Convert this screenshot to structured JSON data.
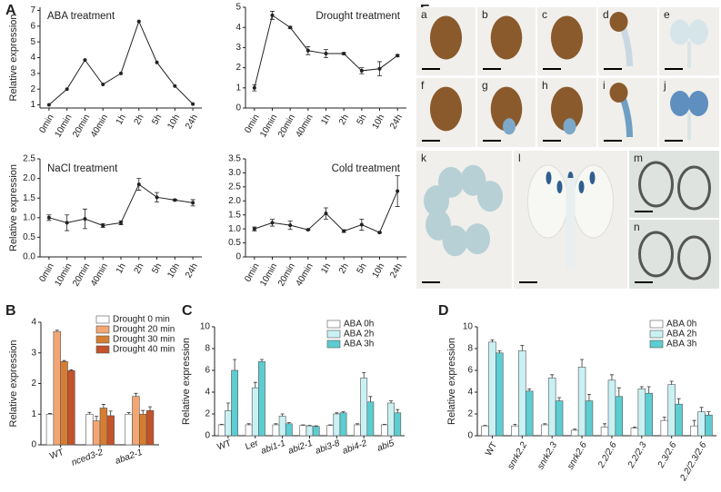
{
  "chart_data": [
    {
      "type": "line",
      "panel": "A",
      "title": "ABA treatment",
      "ylabel": "Relative expression",
      "categories": [
        "0min",
        "10min",
        "20min",
        "40min",
        "1h",
        "2h",
        "5h",
        "10h",
        "24h"
      ],
      "values": [
        1.0,
        2.0,
        3.85,
        2.3,
        3.0,
        6.3,
        3.7,
        2.2,
        1.05
      ],
      "ylim": [
        0.8,
        7.2
      ],
      "yticks": [
        1,
        2,
        3,
        4,
        5,
        6,
        7
      ],
      "color": "#222222"
    },
    {
      "type": "line",
      "title": "Drought treatment",
      "categories": [
        "0min",
        "10min",
        "20min",
        "40min",
        "1h",
        "2h",
        "5h",
        "10h",
        "24h"
      ],
      "values": [
        1.0,
        4.6,
        4.0,
        2.85,
        2.7,
        2.7,
        1.85,
        1.95,
        2.6
      ],
      "errors": [
        0.15,
        0.2,
        0.05,
        0.2,
        0.2,
        0.05,
        0.15,
        0.35,
        0.05
      ],
      "ylim": [
        0,
        5
      ],
      "yticks": [
        0,
        1,
        2,
        3,
        4,
        5
      ],
      "color": "#222222"
    },
    {
      "type": "line",
      "title": "NaCl treatment",
      "ylabel": "Relative expression",
      "categories": [
        "0min",
        "10min",
        "20min",
        "40min",
        "1h",
        "2h",
        "5h",
        "10h",
        "24h"
      ],
      "values": [
        1.0,
        0.87,
        0.97,
        0.8,
        0.87,
        1.85,
        1.52,
        1.45,
        1.38
      ],
      "errors": [
        0.07,
        0.2,
        0.25,
        0.05,
        0.05,
        0.15,
        0.12,
        0.02,
        0.08
      ],
      "ylim": [
        0,
        2.5
      ],
      "yticks": [
        {
          "value": 0,
          "label": "0.0"
        },
        0.5,
        {
          "value": 1,
          "label": "1.0"
        },
        1.5,
        {
          "value": 2,
          "label": "2.0"
        },
        2.5
      ],
      "color": "#222222"
    },
    {
      "type": "line",
      "title": "Cold treatment",
      "categories": [
        "0min",
        "10min",
        "20min",
        "40min",
        "1h",
        "2h",
        "5h",
        "10h",
        "24h"
      ],
      "values": [
        1.0,
        1.22,
        1.13,
        0.97,
        1.55,
        0.92,
        1.15,
        0.87,
        2.35
      ],
      "errors": [
        0.07,
        0.12,
        0.15,
        0.02,
        0.2,
        0.05,
        0.2,
        0.02,
        0.55
      ],
      "ylim": [
        0,
        3.5
      ],
      "yticks": [
        0,
        0.5,
        {
          "value": 1,
          "label": "1.0"
        },
        1.5,
        {
          "value": 2,
          "label": "2.0"
        },
        2.5,
        {
          "value": 3,
          "label": "3.0"
        },
        3.5
      ],
      "color": "#222222"
    },
    {
      "type": "bar",
      "panel": "B",
      "ylabel": "Relative expression",
      "categories": [
        "WT",
        "nced3-2",
        "aba2-1"
      ],
      "series": [
        {
          "name": "Drought 0 min",
          "color": "#ffffff",
          "values": [
            1.0,
            1.0,
            1.0
          ],
          "errors": [
            0.02,
            0.06,
            0.05
          ]
        },
        {
          "name": "Drought 20 min",
          "color": "#f3a673",
          "values": [
            3.7,
            0.78,
            1.58
          ],
          "errors": [
            0.04,
            0.15,
            0.1
          ]
        },
        {
          "name": "Drought 30 min",
          "color": "#d57e33",
          "values": [
            2.72,
            1.2,
            1.0
          ],
          "errors": [
            0.03,
            0.12,
            0.12
          ]
        },
        {
          "name": "Drought 40 min",
          "color": "#c4522a",
          "values": [
            2.42,
            0.95,
            1.12
          ],
          "errors": [
            0.03,
            0.15,
            0.12
          ]
        }
      ],
      "ylim": [
        0,
        4
      ],
      "yticks": [
        0,
        1,
        2,
        3,
        4
      ]
    },
    {
      "type": "bar",
      "panel": "C",
      "ylabel": "Relative expression",
      "categories": [
        "WT",
        "Ler",
        "abi1-1",
        "abi2-1",
        "abi3-8",
        "abi4-2",
        "abi5"
      ],
      "series": [
        {
          "name": "ABA 0h",
          "color": "#ffffff",
          "values": [
            1.0,
            1.0,
            1.0,
            0.95,
            0.95,
            1.0,
            1.0
          ],
          "errors": [
            0.05,
            0.1,
            0.1,
            0.05,
            0.05,
            0.1,
            0.05
          ]
        },
        {
          "name": "ABA 2h",
          "color": "#c9f1f4",
          "values": [
            2.3,
            4.4,
            1.8,
            0.9,
            2.0,
            5.3,
            3.0
          ],
          "errors": [
            0.7,
            0.5,
            0.2,
            0.05,
            0.1,
            0.5,
            0.2
          ]
        },
        {
          "name": "ABA 3h",
          "color": "#5ccdd1",
          "values": [
            6.0,
            6.8,
            1.1,
            0.85,
            2.1,
            3.1,
            2.1
          ],
          "errors": [
            1.0,
            0.2,
            0.1,
            0.05,
            0.1,
            0.5,
            0.3
          ]
        }
      ],
      "ylim": [
        0,
        10
      ],
      "yticks": [
        0,
        2,
        4,
        6,
        8,
        10
      ]
    },
    {
      "type": "bar",
      "panel": "D",
      "ylabel": "Relative expression",
      "categories": [
        "WT",
        "snrk2.2",
        "snrk2.3",
        "snrk2.6",
        "2.2/2.6",
        "2.2/2.3",
        "2.3/2.6",
        "2.2/2.3/2.6"
      ],
      "series": [
        {
          "name": "ABA 0h",
          "color": "#ffffff",
          "values": [
            0.9,
            0.9,
            1.0,
            0.5,
            0.8,
            0.7,
            1.4,
            0.9
          ],
          "errors": [
            0.05,
            0.15,
            0.1,
            0.1,
            0.3,
            0.1,
            0.3,
            0.5
          ]
        },
        {
          "name": "ABA 2h",
          "color": "#c9f1f4",
          "values": [
            8.6,
            7.8,
            5.3,
            6.3,
            5.1,
            4.3,
            4.7,
            2.2
          ],
          "errors": [
            0.2,
            0.5,
            0.3,
            0.7,
            0.5,
            0.2,
            0.3,
            0.4
          ]
        },
        {
          "name": "ABA 3h",
          "color": "#5ccdd1",
          "values": [
            7.6,
            4.1,
            3.2,
            3.2,
            3.6,
            3.9,
            2.9,
            1.9
          ],
          "errors": [
            0.2,
            0.2,
            0.3,
            0.6,
            0.8,
            0.6,
            0.5,
            0.3
          ]
        }
      ],
      "ylim": [
        0,
        10
      ],
      "yticks": [
        0,
        2,
        4,
        6,
        8,
        10
      ]
    }
  ],
  "image_panel": {
    "panel": "E",
    "tiles": [
      "a",
      "b",
      "c",
      "d",
      "e",
      "f",
      "g",
      "h",
      "i",
      "j",
      "k",
      "l",
      "m",
      "n"
    ]
  }
}
